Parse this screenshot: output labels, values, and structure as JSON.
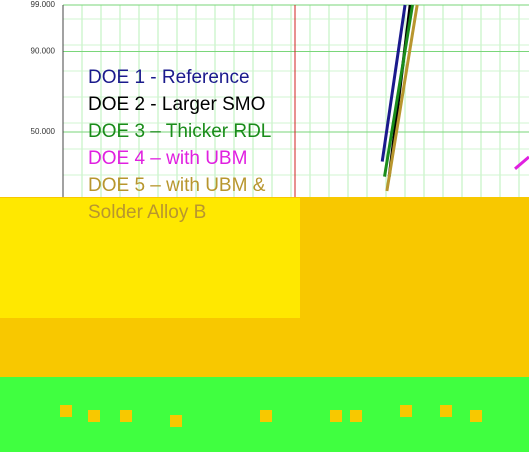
{
  "chart_data": {
    "type": "line",
    "ylim": [
      1,
      99
    ],
    "yticks": [
      {
        "value": 99,
        "label": "99.000"
      },
      {
        "value": 90,
        "label": "90.000"
      },
      {
        "value": 50,
        "label": "50.000"
      }
    ],
    "xlim": [
      0,
      1000
    ],
    "grid": true,
    "series": [
      {
        "name": "DOE 1 - Reference",
        "color": "#1a1a8c",
        "x": [
          685,
          734
        ],
        "values": [
          36,
          99
        ]
      },
      {
        "name": "DOE 2 -  Larger SMO",
        "color": "#000000",
        "x": [
          700,
          745
        ],
        "values": [
          30,
          99
        ]
      },
      {
        "name": "DOE 3 – Thicker RDL",
        "color": "#1a8c1a",
        "x": [
          690,
          750
        ],
        "values": [
          30,
          99
        ]
      },
      {
        "name": "DOE 4 – with UBM",
        "color": "#e020e0",
        "x": [
          970,
          1000
        ],
        "values": [
          33,
          38
        ]
      },
      {
        "name": "DOE 5 – with UBM & Solder Alloy B",
        "color": "#b8962e",
        "x": [
          695,
          760
        ],
        "values": [
          25,
          99
        ]
      }
    ]
  }
}
